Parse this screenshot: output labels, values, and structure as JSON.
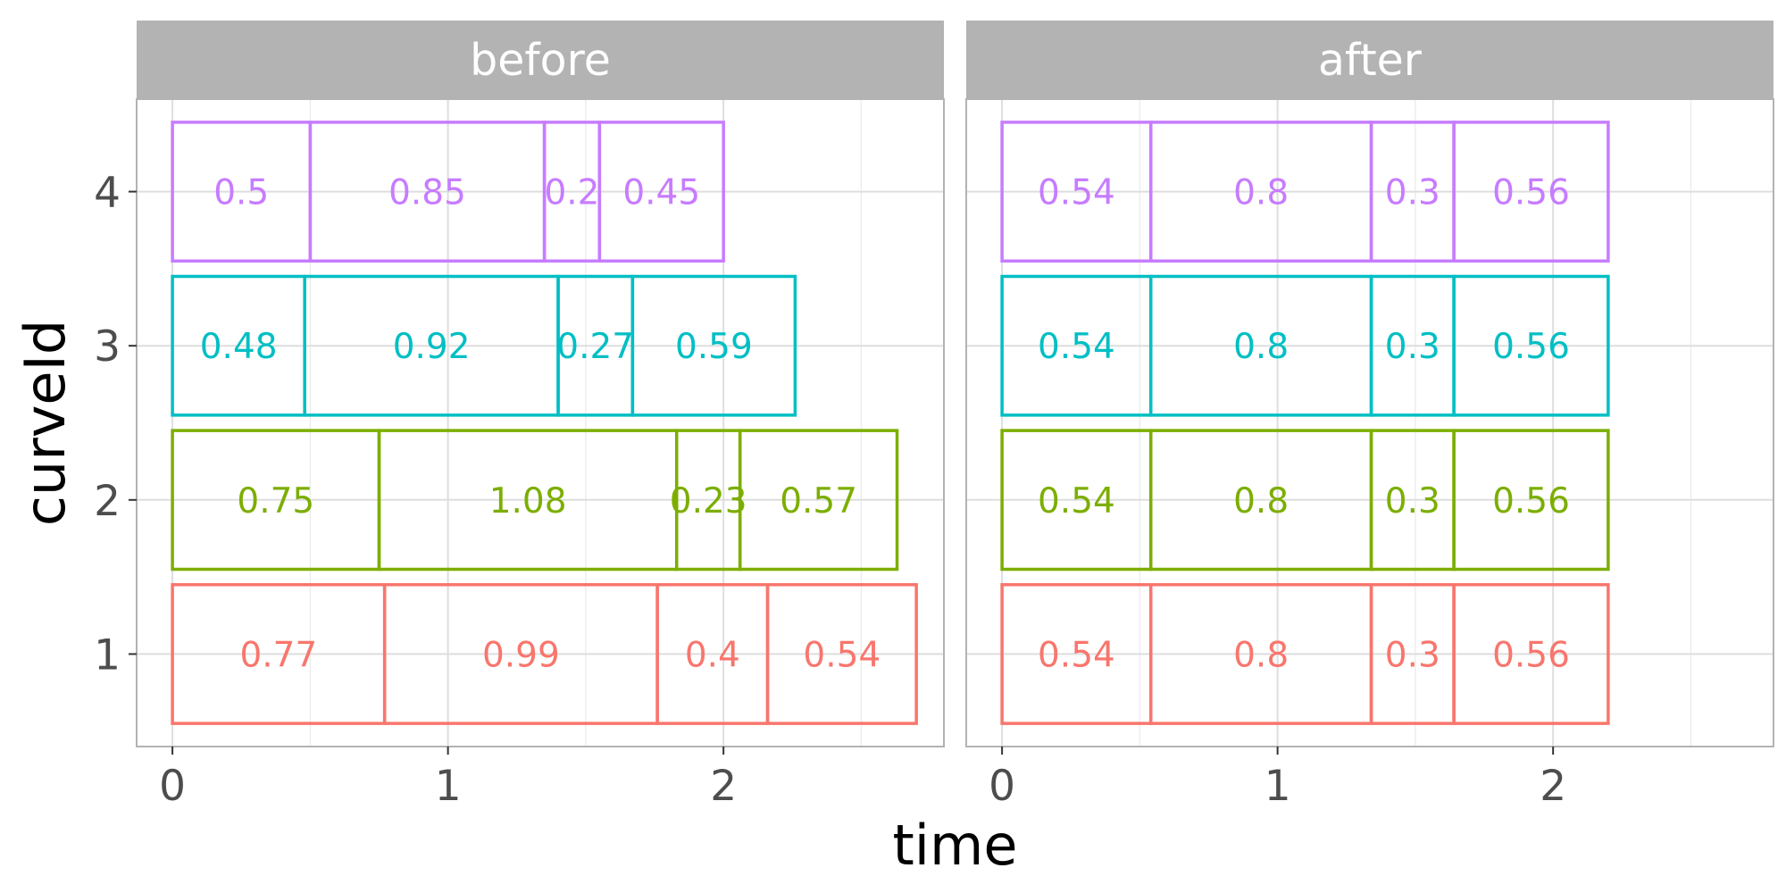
{
  "chart_data": {
    "type": "bar",
    "subtype": "stacked-horizontal-faceted",
    "xlabel": "time",
    "ylabel": "curveId",
    "xlim": [
      -0.13,
      2.8
    ],
    "ylim": [
      0.4,
      4.6
    ],
    "x_ticks": [
      0,
      1,
      2
    ],
    "y_ticks": [
      1,
      2,
      3,
      4
    ],
    "grid": true,
    "colors": {
      "1": "#F8766D",
      "2": "#7CAE00",
      "3": "#00BFC4",
      "4": "#C77CFF"
    },
    "facets": [
      {
        "label": "before",
        "curves": [
          {
            "curveId": 1,
            "segments": [
              0.77,
              0.99,
              0.4,
              0.54
            ]
          },
          {
            "curveId": 2,
            "segments": [
              0.75,
              1.08,
              0.23,
              0.57
            ]
          },
          {
            "curveId": 3,
            "segments": [
              0.48,
              0.92,
              0.27,
              0.59
            ]
          },
          {
            "curveId": 4,
            "segments": [
              0.5,
              0.85,
              0.2,
              0.45
            ]
          }
        ]
      },
      {
        "label": "after",
        "curves": [
          {
            "curveId": 1,
            "segments": [
              0.54,
              0.8,
              0.3,
              0.56
            ]
          },
          {
            "curveId": 2,
            "segments": [
              0.54,
              0.8,
              0.3,
              0.56
            ]
          },
          {
            "curveId": 3,
            "segments": [
              0.54,
              0.8,
              0.3,
              0.56
            ]
          },
          {
            "curveId": 4,
            "segments": [
              0.54,
              0.8,
              0.3,
              0.56
            ]
          }
        ]
      }
    ]
  }
}
